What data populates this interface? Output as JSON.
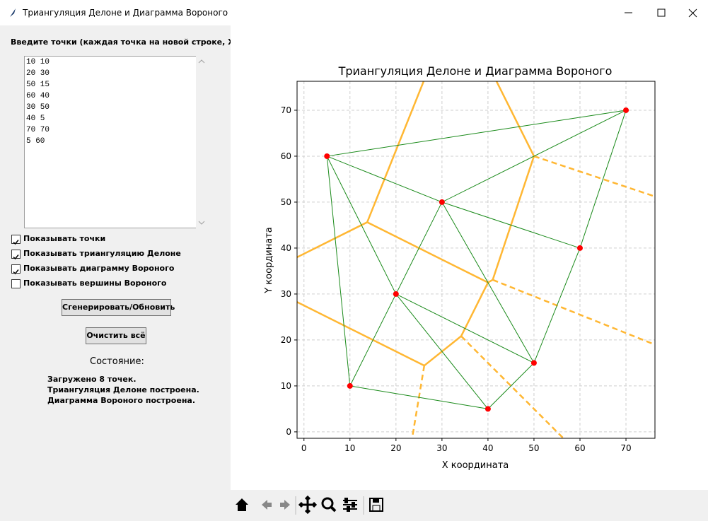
{
  "window": {
    "title": "Триангуляция Делоне и Диаграмма Вороного"
  },
  "panel": {
    "input_label": "Введите точки (каждая точка на новой строке, X Y):",
    "input_lines": [
      "10 10",
      "20 30",
      "50 15",
      "60 40",
      "30 50",
      "40 5",
      "70 70",
      "5 60"
    ],
    "checkboxes": [
      {
        "label": "Показывать точки",
        "checked": true
      },
      {
        "label": "Показывать триангуляцию Делоне",
        "checked": true
      },
      {
        "label": "Показывать диаграмму Вороного",
        "checked": true
      },
      {
        "label": "Показывать вершины Вороного",
        "checked": false
      }
    ],
    "buttons": [
      "Сгенерировать/Обновить",
      "Очистить всё"
    ],
    "status_title": "Состояние:",
    "status_lines": [
      "Загружено 8 точек.",
      "Триангуляция Делоне построена.",
      "Диаграмма Вороного построена."
    ]
  },
  "chart_data": {
    "type": "scatter",
    "title": "Триангуляция Делоне и Диаграмма Вороного",
    "x_label": "X координата",
    "y_label": "Y координата",
    "xlim": [
      -1.5,
      76.3
    ],
    "ylim": [
      -1.4,
      76.3
    ],
    "xticks": [
      0,
      10,
      20,
      30,
      40,
      50,
      60,
      70
    ],
    "yticks": [
      0,
      10,
      20,
      30,
      40,
      50,
      60,
      70
    ],
    "grid": true,
    "points": {
      "color": "#ff0000",
      "x": [
        10,
        20,
        50,
        60,
        30,
        40,
        70,
        5
      ],
      "y": [
        10,
        30,
        15,
        40,
        50,
        5,
        70,
        60
      ]
    },
    "triangulation": {
      "color": "#1a8a1a",
      "edges": [
        {
          "x": [
            5,
            70
          ],
          "y": [
            60,
            70
          ]
        },
        {
          "x": [
            5,
            30
          ],
          "y": [
            60,
            50
          ]
        },
        {
          "x": [
            30,
            70
          ],
          "y": [
            50,
            70
          ]
        },
        {
          "x": [
            70,
            60
          ],
          "y": [
            70,
            40
          ]
        },
        {
          "x": [
            30,
            60
          ],
          "y": [
            50,
            40
          ]
        },
        {
          "x": [
            60,
            50
          ],
          "y": [
            40,
            15
          ]
        },
        {
          "x": [
            30,
            50
          ],
          "y": [
            50,
            15
          ]
        },
        {
          "x": [
            20,
            30
          ],
          "y": [
            30,
            50
          ]
        },
        {
          "x": [
            5,
            20
          ],
          "y": [
            60,
            30
          ]
        },
        {
          "x": [
            5,
            10
          ],
          "y": [
            60,
            10
          ]
        },
        {
          "x": [
            10,
            20
          ],
          "y": [
            10,
            30
          ]
        },
        {
          "x": [
            10,
            40
          ],
          "y": [
            10,
            5
          ]
        },
        {
          "x": [
            20,
            40
          ],
          "y": [
            30,
            5
          ]
        },
        {
          "x": [
            20,
            50
          ],
          "y": [
            30,
            15
          ]
        },
        {
          "x": [
            40,
            50
          ],
          "y": [
            5,
            15
          ]
        }
      ]
    },
    "voronoi": {
      "color": "#ffb733",
      "edges": [
        {
          "x": [
            33.06,
            50
          ],
          "y": [
            93.9,
            60
          ],
          "dashed": false
        },
        {
          "x": [
            33.06,
            13.75
          ],
          "y": [
            93.9,
            45.63
          ],
          "dashed": false
        },
        {
          "x": [
            13.75,
            -11.25
          ],
          "y": [
            45.63,
            33.13
          ],
          "dashed": false
        },
        {
          "x": [
            13.75,
            40
          ],
          "y": [
            45.63,
            32.5
          ],
          "dashed": false
        },
        {
          "x": [
            -11.25,
            26.15
          ],
          "y": [
            33.13,
            14.42
          ],
          "dashed": false
        },
        {
          "x": [
            26.15,
            34.17
          ],
          "y": [
            14.42,
            20.83
          ],
          "dashed": false
        },
        {
          "x": [
            34.17,
            40
          ],
          "y": [
            20.83,
            32.5
          ],
          "dashed": false
        },
        {
          "x": [
            40,
            41.03
          ],
          "y": [
            32.5,
            33.09
          ],
          "dashed": false
        },
        {
          "x": [
            41.03,
            50
          ],
          "y": [
            33.09,
            60
          ],
          "dashed": false
        },
        {
          "x": [
            50,
            77
          ],
          "y": [
            60,
            51
          ],
          "dashed": true
        },
        {
          "x": [
            41.03,
            77
          ],
          "y": [
            33.09,
            18.7
          ],
          "dashed": true
        },
        {
          "x": [
            34.17,
            57
          ],
          "y": [
            20.83,
            -2
          ],
          "dashed": true
        },
        {
          "x": [
            26.15,
            23.41
          ],
          "y": [
            14.42,
            -2
          ],
          "dashed": true
        }
      ]
    }
  }
}
